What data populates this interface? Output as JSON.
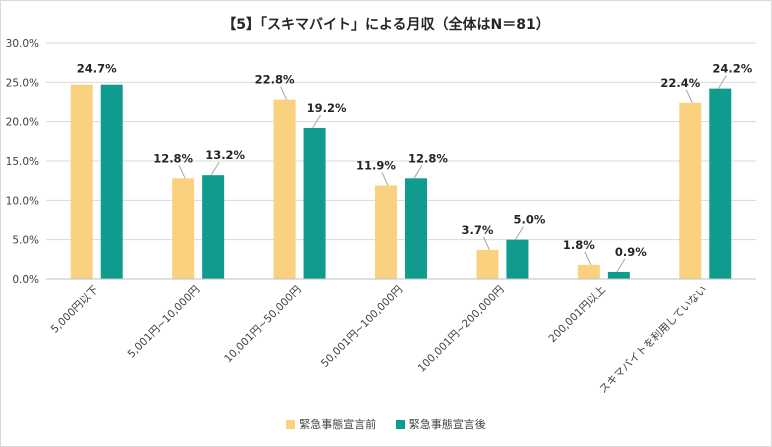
{
  "chart_data": {
    "type": "bar",
    "title": "【5】「スキマバイト」による月収（全体はN＝81）",
    "categories": [
      "5,000円以下",
      "5,001円~10,000円",
      "10,001円~50,000円",
      "50,001円~100,000円",
      "100,001円~200,000円",
      "200,001円以上",
      "スキマバイトを利用していない"
    ],
    "series": [
      {
        "name": "緊急事態宣言前",
        "color": "#fad17f",
        "values": [
          24.7,
          12.8,
          22.8,
          11.9,
          3.7,
          1.8,
          22.4
        ],
        "labels": [
          "24.7%",
          "12.8%",
          "22.8%",
          "11.9%",
          "3.7%",
          "1.8%",
          "22.4%"
        ]
      },
      {
        "name": "緊急事態宣言後",
        "color": "#0f9b8e",
        "values": [
          24.7,
          13.2,
          19.2,
          12.8,
          5.0,
          0.9,
          24.2
        ],
        "labels": [
          "",
          "13.2%",
          "19.2%",
          "12.8%",
          "5.0%",
          "0.9%",
          "24.2%"
        ]
      }
    ],
    "merged_label": [
      "24.7%"
    ],
    "yticks": [
      "0.0%",
      "5.0%",
      "10.0%",
      "15.0%",
      "20.0%",
      "25.0%",
      "30.0%"
    ],
    "ylim": [
      0,
      30
    ],
    "grid": true,
    "legend_position": "bottom"
  }
}
